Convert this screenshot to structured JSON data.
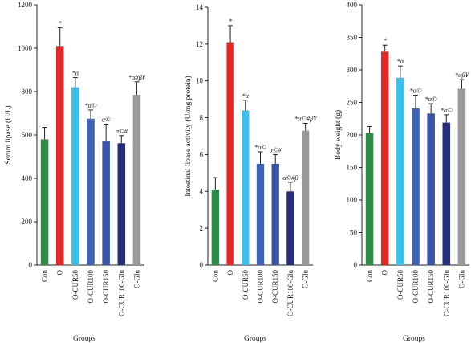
{
  "chart_data": [
    {
      "type": "bar",
      "ylabel": "Serum lipase (U/L)",
      "xlabel": "Groups",
      "ylim": [
        0,
        1200
      ],
      "yticks": [
        0,
        200,
        400,
        600,
        800,
        1000,
        1200
      ],
      "categories": [
        "Con",
        "O",
        "O-CUR50",
        "O-CUR100",
        "O-CUR150",
        "O-CUR100-Glu",
        "O-Glu"
      ],
      "values": [
        580,
        1010,
        820,
        675,
        570,
        562,
        785
      ],
      "errors": [
        55,
        85,
        45,
        40,
        80,
        35,
        60
      ],
      "annotations": [
        "",
        "*",
        "*α",
        "*α©",
        "α©",
        "α©#",
        "*α#β¥"
      ],
      "colors": [
        "#2e8b4a",
        "#e02a2a",
        "#3cbfe8",
        "#3e63b3",
        "#3a55a8",
        "#272f7a",
        "#9a9a9a"
      ]
    },
    {
      "type": "bar",
      "ylabel": "Intestinal lipase activity (U/mg protein)",
      "xlabel": "Groups",
      "ylim": [
        0,
        14
      ],
      "yticks": [
        0,
        2,
        4,
        6,
        8,
        10,
        12,
        14
      ],
      "categories": [
        "Con",
        "O",
        "O-CUR50",
        "O-CUR100",
        "O-CUR150",
        "O-CUR100-Glu",
        "O-Glu"
      ],
      "values": [
        4.1,
        12.1,
        8.4,
        5.5,
        5.5,
        4.0,
        7.3
      ],
      "errors": [
        0.65,
        0.9,
        0.55,
        0.65,
        0.5,
        0.5,
        0.4
      ],
      "annotations": [
        "",
        "*",
        "*α",
        "*α©",
        "α©#",
        "α©#β",
        "*α©#β¥"
      ],
      "colors": [
        "#2e8b4a",
        "#e02a2a",
        "#3cbfe8",
        "#3e63b3",
        "#3a55a8",
        "#272f7a",
        "#9a9a9a"
      ]
    },
    {
      "type": "bar",
      "ylabel": "Body weight (g)",
      "xlabel": "Groups",
      "ylim": [
        0,
        400
      ],
      "yticks": [
        0,
        50,
        100,
        150,
        200,
        250,
        300,
        350,
        400
      ],
      "categories": [
        "Con",
        "O",
        "O-CUR50",
        "O-CUR100",
        "O-CUR150",
        "O-CUR100-Glu",
        "O-Glu"
      ],
      "values": [
        203,
        328,
        288,
        241,
        233,
        219,
        271
      ],
      "errors": [
        10,
        10,
        18,
        20,
        15,
        12,
        14
      ],
      "annotations": [
        "",
        "*",
        "*α",
        "*α©",
        "*α©",
        "*α©",
        "*αβ¥"
      ],
      "colors": [
        "#2e8b4a",
        "#e02a2a",
        "#3cbfe8",
        "#3e63b3",
        "#3a55a8",
        "#272f7a",
        "#9a9a9a"
      ]
    }
  ]
}
